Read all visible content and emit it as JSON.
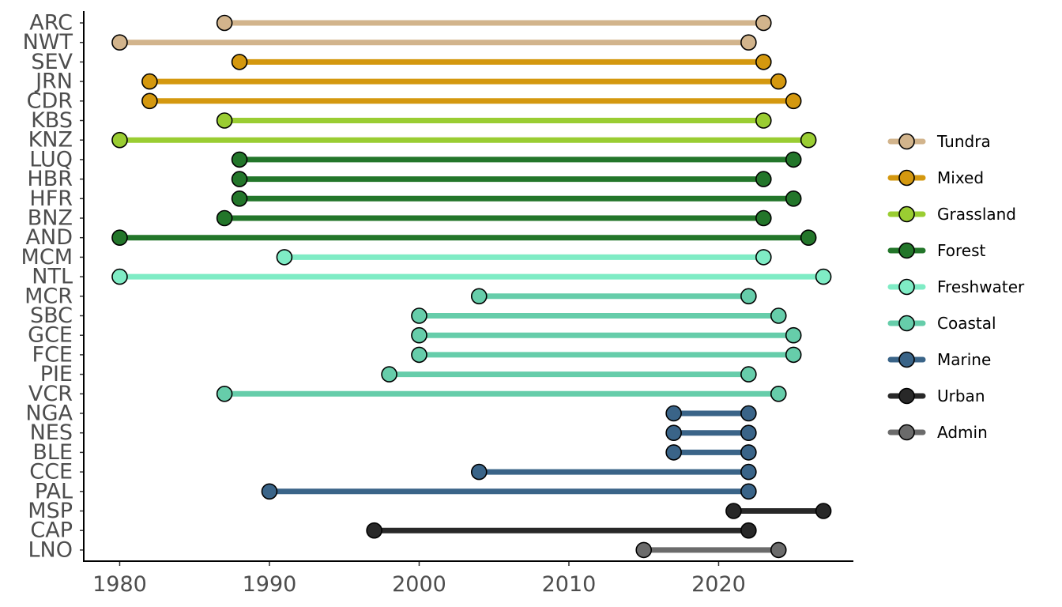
{
  "chart_data": {
    "type": "dumbbell",
    "title": "",
    "xlabel": "",
    "ylabel": "",
    "xlim": [
      1977.6,
      2029
    ],
    "x_ticks": [
      1980,
      1990,
      2000,
      2010,
      2020
    ],
    "grid": false,
    "legend_position": "right",
    "categories": [
      {
        "name": "Tundra",
        "color": "#D2B48C"
      },
      {
        "name": "Mixed",
        "color": "#D4980F"
      },
      {
        "name": "Grassland",
        "color": "#9ACD32"
      },
      {
        "name": "Forest",
        "color": "#23762A"
      },
      {
        "name": "Freshwater",
        "color": "#7FECC5"
      },
      {
        "name": "Coastal",
        "color": "#66CDAA"
      },
      {
        "name": "Marine",
        "color": "#3A6488"
      },
      {
        "name": "Urban",
        "color": "#282828"
      },
      {
        "name": "Admin",
        "color": "#6B6B6B"
      }
    ],
    "sites": [
      {
        "site": "ARC",
        "category": "Tundra",
        "start": 1987,
        "end": 2023
      },
      {
        "site": "NWT",
        "category": "Tundra",
        "start": 1980,
        "end": 2022
      },
      {
        "site": "SEV",
        "category": "Mixed",
        "start": 1988,
        "end": 2023
      },
      {
        "site": "JRN",
        "category": "Mixed",
        "start": 1982,
        "end": 2024
      },
      {
        "site": "CDR",
        "category": "Mixed",
        "start": 1982,
        "end": 2025
      },
      {
        "site": "KBS",
        "category": "Grassland",
        "start": 1987,
        "end": 2023
      },
      {
        "site": "KNZ",
        "category": "Grassland",
        "start": 1980,
        "end": 2026
      },
      {
        "site": "LUQ",
        "category": "Forest",
        "start": 1988,
        "end": 2025
      },
      {
        "site": "HBR",
        "category": "Forest",
        "start": 1988,
        "end": 2023
      },
      {
        "site": "HFR",
        "category": "Forest",
        "start": 1988,
        "end": 2025
      },
      {
        "site": "BNZ",
        "category": "Forest",
        "start": 1987,
        "end": 2023
      },
      {
        "site": "AND",
        "category": "Forest",
        "start": 1980,
        "end": 2026
      },
      {
        "site": "MCM",
        "category": "Freshwater",
        "start": 1991,
        "end": 2023
      },
      {
        "site": "NTL",
        "category": "Freshwater",
        "start": 1980,
        "end": 2027
      },
      {
        "site": "MCR",
        "category": "Coastal",
        "start": 2004,
        "end": 2022
      },
      {
        "site": "SBC",
        "category": "Coastal",
        "start": 2000,
        "end": 2024
      },
      {
        "site": "GCE",
        "category": "Coastal",
        "start": 2000,
        "end": 2025
      },
      {
        "site": "FCE",
        "category": "Coastal",
        "start": 2000,
        "end": 2025
      },
      {
        "site": "PIE",
        "category": "Coastal",
        "start": 1998,
        "end": 2022
      },
      {
        "site": "VCR",
        "category": "Coastal",
        "start": 1987,
        "end": 2024
      },
      {
        "site": "NGA",
        "category": "Marine",
        "start": 2017,
        "end": 2022
      },
      {
        "site": "NES",
        "category": "Marine",
        "start": 2017,
        "end": 2022
      },
      {
        "site": "BLE",
        "category": "Marine",
        "start": 2017,
        "end": 2022
      },
      {
        "site": "CCE",
        "category": "Marine",
        "start": 2004,
        "end": 2022
      },
      {
        "site": "PAL",
        "category": "Marine",
        "start": 1990,
        "end": 2022
      },
      {
        "site": "MSP",
        "category": "Urban",
        "start": 2021,
        "end": 2027
      },
      {
        "site": "CAP",
        "category": "Urban",
        "start": 1997,
        "end": 2022
      },
      {
        "site": "LNO",
        "category": "Admin",
        "start": 2015,
        "end": 2024
      }
    ]
  }
}
